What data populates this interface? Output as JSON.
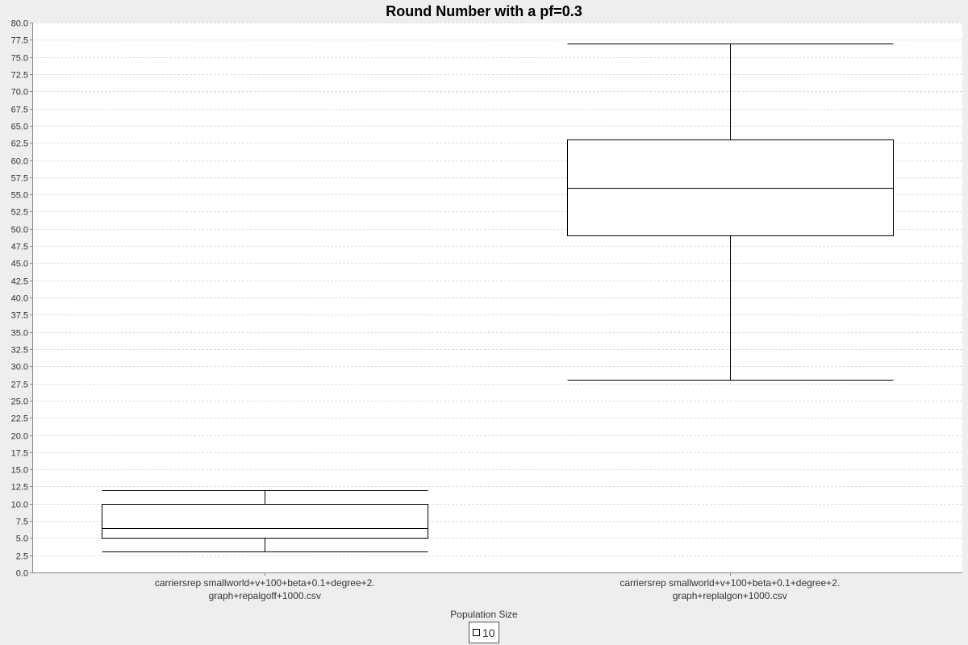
{
  "chart_data": {
    "type": "boxplot",
    "title": "Round Number with a pf=0.3",
    "xlabel": "",
    "ylabel": "",
    "ylim": [
      0,
      80
    ],
    "y_tick_step": 2.5,
    "y_ticks": [
      "0.0",
      "2.5",
      "5.0",
      "7.5",
      "10.0",
      "12.5",
      "15.0",
      "17.5",
      "20.0",
      "22.5",
      "25.0",
      "27.5",
      "30.0",
      "32.5",
      "35.0",
      "37.5",
      "40.0",
      "42.5",
      "45.0",
      "47.5",
      "50.0",
      "52.5",
      "55.0",
      "57.5",
      "60.0",
      "62.5",
      "65.0",
      "67.5",
      "70.0",
      "72.5",
      "75.0",
      "77.5",
      "80.0"
    ],
    "grid": true,
    "legend_title": "Population Size",
    "legend_position": "bottom",
    "categories": [
      {
        "label_lines": [
          "carriersrep smallworld+v+100+beta+0.1+degree+2.",
          "graph+repalgoff+1000.csv"
        ]
      },
      {
        "label_lines": [
          "carriersrep smallworld+v+100+beta+0.1+degree+2.",
          "graph+replalgon+1000.csv"
        ]
      }
    ],
    "series": [
      {
        "name": "10",
        "color": "#ffffff",
        "stroke": "#000000",
        "boxes": [
          {
            "whisker_low": 3,
            "q1": 5,
            "median": 6.5,
            "q3": 10,
            "whisker_high": 12
          },
          {
            "whisker_low": 28,
            "q1": 49,
            "median": 56,
            "q3": 63,
            "whisker_high": 77
          }
        ]
      }
    ]
  },
  "colors": {
    "background": "#eeeeee",
    "plot_background": "#ffffff",
    "gridline": "#dddddd",
    "axis": "#888888"
  }
}
